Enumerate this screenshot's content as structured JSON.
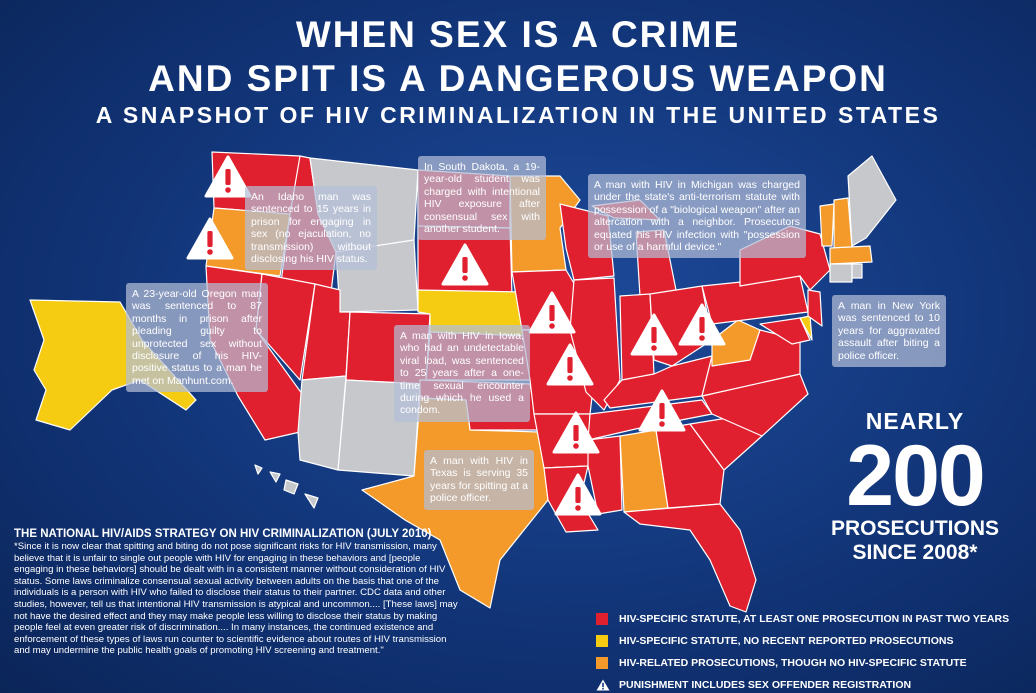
{
  "header": {
    "title_line1": "WHEN SEX IS A CRIME",
    "title_line2": "AND SPIT IS A DANGEROUS WEAPON",
    "subtitle": "A SNAPSHOT OF HIV CRIMINALIZATION IN THE UNITED STATES"
  },
  "colors": {
    "red": "#e0202e",
    "yellow": "#f5cc12",
    "orange": "#f39a2a",
    "grey": "#c6c8cc",
    "background": "#163d86"
  },
  "callouts": {
    "idaho": "An Idaho man was sentenced to 15 years in prison for engaging in sex (no ejaculation, no transmission) without disclosing his HIV status.",
    "south_dakota": "In South Dakota, a 19-year-old student was charged with intentional HIV exposure after consensual sex with another student.",
    "michigan": "A man with HIV in Michigan was charged under the state's anti-terrorism statute with possession of a \"biological weapon\" after an altercation with a neighbor. Prosecutors equated his HIV infection with \"possession or use of a harmful device.\"",
    "oregon": "A 23-year-old Oregon man was sentenced to 87 months in prison after pleading guilty to unprotected sex without disclosure of his HIV-positive status to a man he met on Manhunt.com.",
    "new_york": "A man in New York was sentenced to 10 years for aggravated assault after biting a police officer.",
    "iowa": "A man with HIV in Iowa, who had an undetectable viral load, was sentenced to 25 years after a one-time sexual encounter during which he used a condom.",
    "texas": "A man with HIV in Texas is serving 35 years for spitting at a police officer."
  },
  "stat": {
    "line1": "NEARLY",
    "number": "200",
    "line3": "PROSECUTIONS",
    "line4": "SINCE 2008*"
  },
  "strategy": {
    "title": "THE NATIONAL HIV/AIDS STRATEGY ON HIV CRIMINALIZATION (JULY 2010)",
    "body": "*Since it is now clear that spitting and biting do not pose significant risks for HIV transmission, many believe that it is unfair to single out people with HIV for engaging in these behaviors and [people engaging in these behaviors] should be dealt with in a consistent manner without consideration of HIV status. Some laws criminalize consensual sexual activity between adults on the basis that one of the individuals is a person with HIV who failed to disclose their status to their partner. CDC data and other studies, however, tell us that intentional HIV transmission is atypical and uncommon.... [These laws] may not have the desired effect and they may make people less willing to disclose their status by making people feel at even greater risk of discrimination.... In many instances, the continued existence and enforcement of these types of laws run counter to scientific evidence about routes of HIV transmission and may undermine the public health goals of promoting HIV screening and treatment.\""
  },
  "legend": {
    "red": "HIV-SPECIFIC STATUTE, AT LEAST ONE PROSECUTION IN PAST TWO YEARS",
    "yellow": "HIV-SPECIFIC STATUTE, NO RECENT REPORTED PROSECUTIONS",
    "orange": "HIV-RELATED PROSECUTIONS, THOUGH NO HIV-SPECIFIC STATUTE",
    "warning": "PUNISHMENT INCLUDES SEX OFFENDER REGISTRATION"
  },
  "map_icons": [
    "warning-icon"
  ]
}
